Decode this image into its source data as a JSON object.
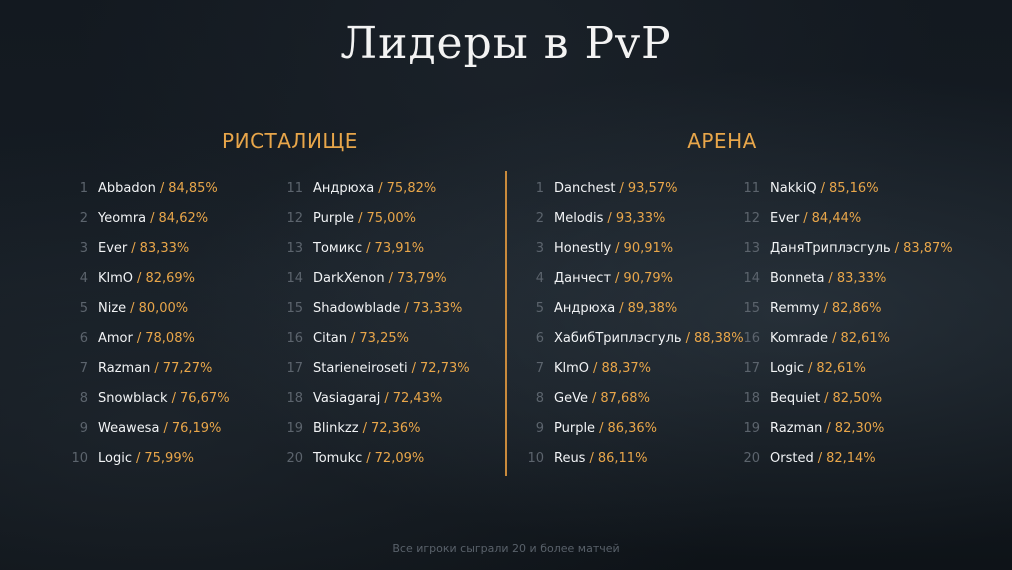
{
  "title": "Лидеры в PvP",
  "left_heading": "РИСТАЛИЩЕ",
  "right_heading": "АРЕНА",
  "separator": "/",
  "footer": "Все игроки сыграли 20 и более матчей",
  "ristalishche": {
    "col1": [
      {
        "rank": "1",
        "name": "Abbadon",
        "pct": "84,85%"
      },
      {
        "rank": "2",
        "name": "Yeomra",
        "pct": "84,62%"
      },
      {
        "rank": "3",
        "name": "Ever",
        "pct": "83,33%"
      },
      {
        "rank": "4",
        "name": "KlmO",
        "pct": "82,69%"
      },
      {
        "rank": "5",
        "name": "Nize",
        "pct": "80,00%"
      },
      {
        "rank": "6",
        "name": "Amor",
        "pct": "78,08%"
      },
      {
        "rank": "7",
        "name": "Razman",
        "pct": "77,27%"
      },
      {
        "rank": "8",
        "name": "Snowblack",
        "pct": "76,67%"
      },
      {
        "rank": "9",
        "name": "Weawesa",
        "pct": "76,19%"
      },
      {
        "rank": "10",
        "name": "Logic",
        "pct": "75,99%"
      }
    ],
    "col2": [
      {
        "rank": "11",
        "name": "Андрюха",
        "pct": "75,82%"
      },
      {
        "rank": "12",
        "name": "Purple",
        "pct": "75,00%"
      },
      {
        "rank": "13",
        "name": "Томикс",
        "pct": "73,91%"
      },
      {
        "rank": "14",
        "name": "DarkXenon",
        "pct": "73,79%"
      },
      {
        "rank": "15",
        "name": "Shadowblade",
        "pct": "73,33%"
      },
      {
        "rank": "16",
        "name": "Citan",
        "pct": "73,25%"
      },
      {
        "rank": "17",
        "name": "Starieneiroseti",
        "pct": "72,73%"
      },
      {
        "rank": "18",
        "name": "Vasiagaraj",
        "pct": "72,43%"
      },
      {
        "rank": "19",
        "name": "Blinkzz",
        "pct": "72,36%"
      },
      {
        "rank": "20",
        "name": "Tomukc",
        "pct": "72,09%"
      }
    ]
  },
  "arena": {
    "col1": [
      {
        "rank": "1",
        "name": "Danchest",
        "pct": "93,57%"
      },
      {
        "rank": "2",
        "name": "Melodis",
        "pct": "93,33%"
      },
      {
        "rank": "3",
        "name": "Honestly",
        "pct": "90,91%"
      },
      {
        "rank": "4",
        "name": "Данчест",
        "pct": "90,79%"
      },
      {
        "rank": "5",
        "name": "Андрюха",
        "pct": "89,38%"
      },
      {
        "rank": "6",
        "name": "ХабибТриплэсгуль",
        "pct": "88,38%"
      },
      {
        "rank": "7",
        "name": "KlmO",
        "pct": "88,37%"
      },
      {
        "rank": "8",
        "name": "GeVe",
        "pct": "87,68%"
      },
      {
        "rank": "9",
        "name": "Purple",
        "pct": "86,36%"
      },
      {
        "rank": "10",
        "name": "Reus",
        "pct": "86,11%"
      }
    ],
    "col2": [
      {
        "rank": "11",
        "name": "NakkiQ",
        "pct": "85,16%"
      },
      {
        "rank": "12",
        "name": "Ever",
        "pct": "84,44%"
      },
      {
        "rank": "13",
        "name": "ДаняТриплэсгуль",
        "pct": "83,87%"
      },
      {
        "rank": "14",
        "name": "Bonneta",
        "pct": "83,33%"
      },
      {
        "rank": "15",
        "name": "Remmy",
        "pct": "82,86%"
      },
      {
        "rank": "16",
        "name": "Komrade",
        "pct": "82,61%"
      },
      {
        "rank": "17",
        "name": "Logic",
        "pct": "82,61%"
      },
      {
        "rank": "18",
        "name": "Bequiet",
        "pct": "82,50%"
      },
      {
        "rank": "19",
        "name": "Razman",
        "pct": "82,30%"
      },
      {
        "rank": "20",
        "name": "Orsted",
        "pct": "82,14%"
      }
    ]
  }
}
